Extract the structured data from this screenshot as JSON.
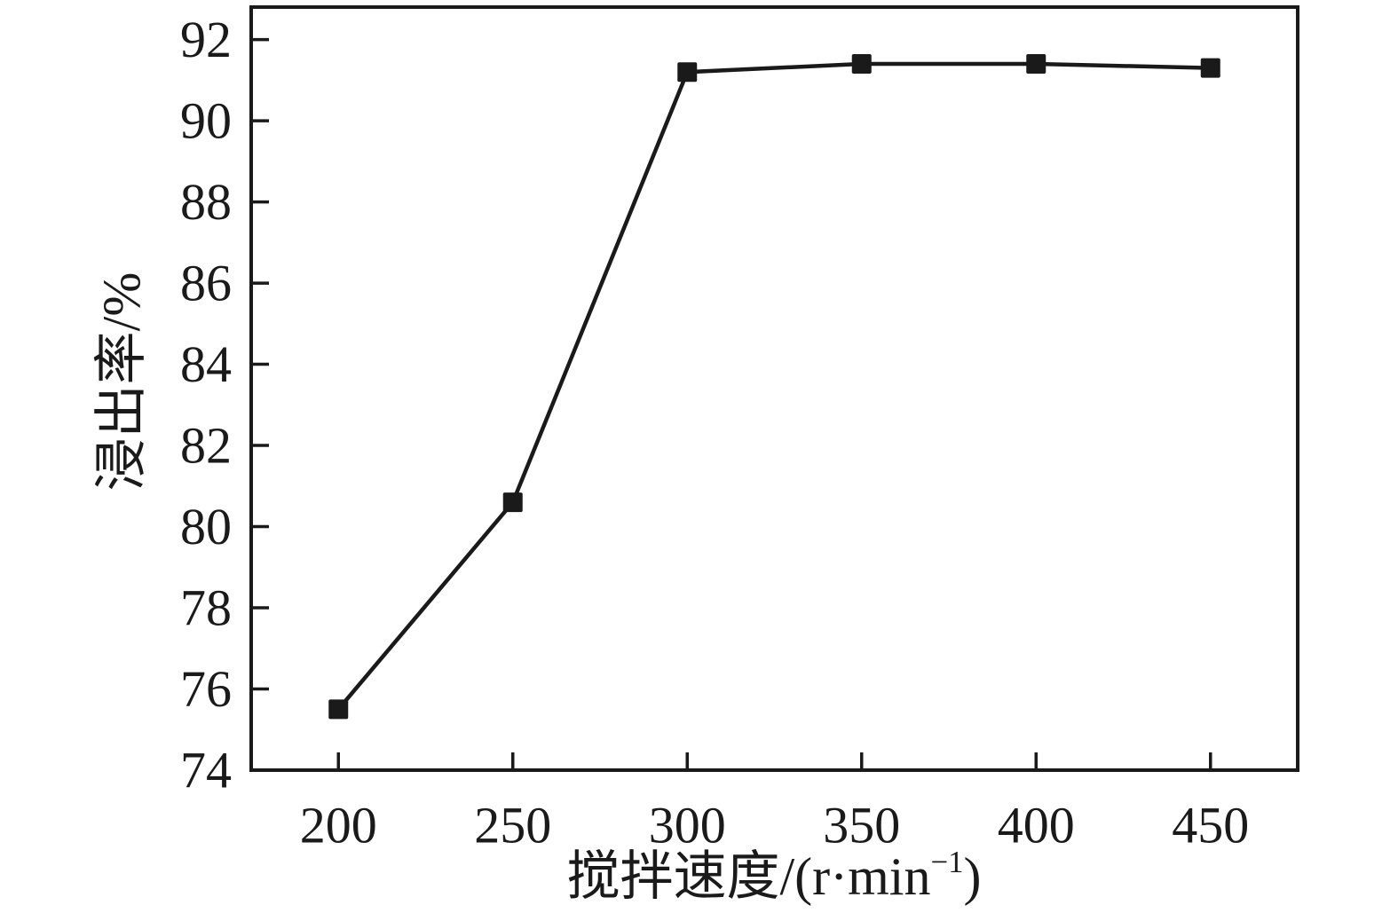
{
  "chart_data": {
    "type": "line",
    "title": "",
    "xlabel": "搅拌速度/(r·min⁻¹)",
    "ylabel": "浸出率/%",
    "x": [
      200,
      250,
      300,
      350,
      400,
      450
    ],
    "series": [
      {
        "name": "浸出率",
        "values": [
          75.5,
          80.6,
          91.2,
          91.4,
          91.4,
          91.3
        ]
      }
    ],
    "xticks": [
      200,
      250,
      300,
      350,
      400,
      450
    ],
    "yticks": [
      74,
      76,
      78,
      80,
      82,
      84,
      86,
      88,
      90,
      92
    ],
    "xlim": [
      175,
      475
    ],
    "ylim": [
      74,
      92.8
    ],
    "grid": false,
    "legend": false,
    "marker": "filled-square",
    "line_color": "#1a1a1a",
    "marker_color": "#1a1a1a",
    "background": "#ffffff"
  },
  "labels": {
    "ylabel": "浸出率/%",
    "xlabel_prefix": "搅拌速度/(r·min",
    "xlabel_sup": "−1",
    "xlabel_suffix": ")"
  }
}
